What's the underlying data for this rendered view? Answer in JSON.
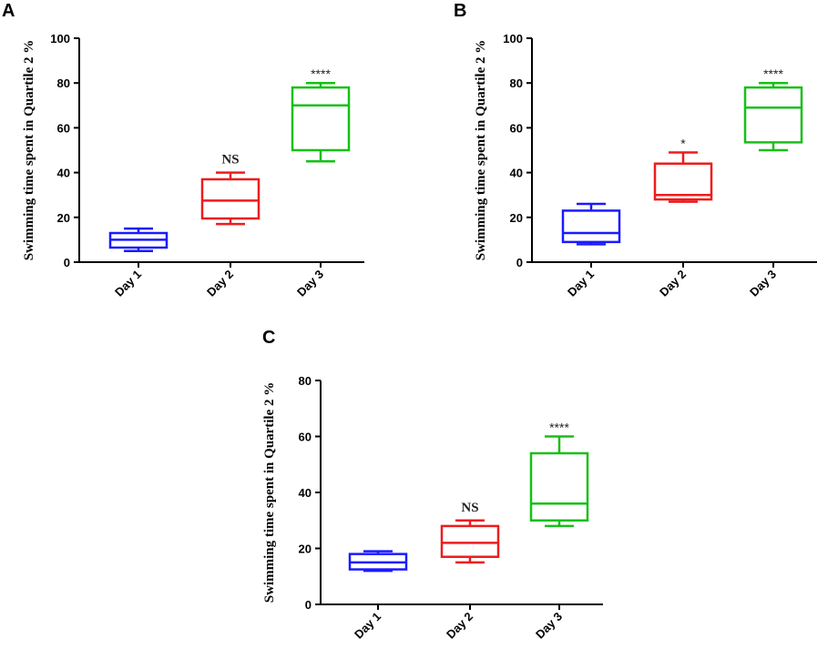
{
  "chart_data": [
    {
      "panel": "A",
      "type": "box",
      "ylabel": "Swimming time spent in Quartile 2 %",
      "ylim": [
        0,
        100
      ],
      "yticks": [
        "0",
        "20",
        "40",
        "60",
        "80",
        "100"
      ],
      "categories": [
        "Day 1",
        "Day 2",
        "Day 3"
      ],
      "boxes": [
        {
          "min": 5,
          "q1": 6.5,
          "median": 10,
          "q3": 13,
          "max": 15,
          "color": "#1a1aff",
          "sig": ""
        },
        {
          "min": 17,
          "q1": 19.5,
          "median": 27.5,
          "q3": 37,
          "max": 40,
          "color": "#ee1c1c",
          "sig": "NS"
        },
        {
          "min": 45,
          "q1": 50,
          "median": 70,
          "q3": 78,
          "max": 80,
          "color": "#17c017",
          "sig": "****"
        }
      ]
    },
    {
      "panel": "B",
      "type": "box",
      "ylabel": "Swimming time spent in Quartile 2 %",
      "ylim": [
        0,
        100
      ],
      "yticks": [
        "0",
        "20",
        "40",
        "60",
        "80",
        "100"
      ],
      "categories": [
        "Day 1",
        "Day 2",
        "Day 3"
      ],
      "boxes": [
        {
          "min": 8,
          "q1": 9,
          "median": 13,
          "q3": 23,
          "max": 26,
          "color": "#1a1aff",
          "sig": ""
        },
        {
          "min": 27,
          "q1": 28,
          "median": 30,
          "q3": 44,
          "max": 49,
          "color": "#ee1c1c",
          "sig": "*"
        },
        {
          "min": 50,
          "q1": 53.5,
          "median": 69,
          "q3": 78,
          "max": 80,
          "color": "#17c017",
          "sig": "****"
        }
      ]
    },
    {
      "panel": "C",
      "type": "box",
      "ylabel": "Swimming time spent in Quartile 2 %",
      "ylim": [
        0,
        80
      ],
      "yticks": [
        "0",
        "20",
        "40",
        "60",
        "80"
      ],
      "categories": [
        "Day 1",
        "Day 2",
        "Day 3"
      ],
      "boxes": [
        {
          "min": 12,
          "q1": 12.5,
          "median": 15,
          "q3": 18,
          "max": 19,
          "color": "#1a1aff",
          "sig": ""
        },
        {
          "min": 15,
          "q1": 17,
          "median": 22,
          "q3": 28,
          "max": 30,
          "color": "#ee1c1c",
          "sig": "NS"
        },
        {
          "min": 28,
          "q1": 30,
          "median": 36,
          "q3": 54,
          "max": 60,
          "color": "#17c017",
          "sig": "****"
        }
      ]
    }
  ]
}
